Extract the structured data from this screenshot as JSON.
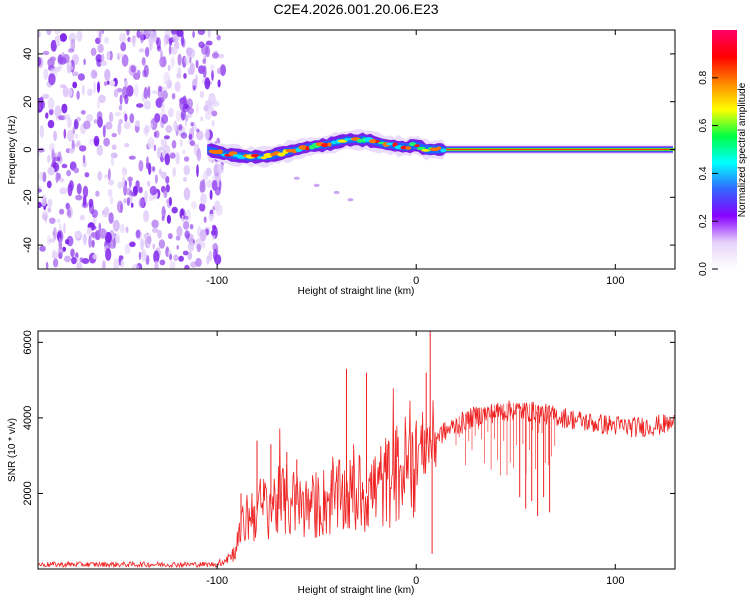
{
  "title": "C2E4.2026.001.20.06.E23",
  "chart_data": [
    {
      "type": "heatmap",
      "name": "spectrogram",
      "xlabel": "Height of straight line (km)",
      "ylabel": "Frequency (Hz)",
      "xlim": [
        -190,
        130
      ],
      "ylim": [
        -50,
        50
      ],
      "xticks": [
        -100,
        0,
        100
      ],
      "xtick_labels": [
        "-100",
        "0",
        "100"
      ],
      "yticks": [
        -40,
        -20,
        0,
        20,
        40
      ],
      "ytick_labels": [
        "-40",
        "-20",
        "0",
        "20",
        "40"
      ],
      "noise_region_x": [
        -190,
        -100
      ],
      "signal_track": {
        "x": [
          -105,
          -95,
          -85,
          -75,
          -65,
          -55,
          -45,
          -35,
          -25,
          -15,
          -5,
          0,
          5,
          10,
          15,
          20,
          40,
          60,
          80,
          100,
          120,
          130
        ],
        "y": [
          0,
          -2,
          -3,
          -3,
          -1,
          1,
          2,
          4,
          4,
          2,
          1,
          2,
          0,
          0,
          0,
          0,
          0,
          0,
          0,
          0,
          0,
          0
        ]
      },
      "faint_branch": {
        "x": [
          -60,
          -50,
          -40,
          -33
        ],
        "y": [
          -12,
          -15,
          -18,
          -21
        ]
      },
      "colorbar": {
        "label": "Normalized spectral amplitude",
        "range": [
          0,
          1
        ],
        "ticks": [
          0.0,
          0.2,
          0.4,
          0.6,
          0.8
        ],
        "tick_labels": [
          "0.0",
          "0.2",
          "0.4",
          "0.6",
          "0.8"
        ],
        "colors": [
          "#ffffff",
          "#e6d3fa",
          "#8800ff",
          "#3366ff",
          "#00ffff",
          "#00ff44",
          "#ffff00",
          "#ff8800",
          "#ff0000",
          "#ff0066"
        ]
      }
    },
    {
      "type": "line",
      "name": "snr",
      "xlabel": "Height of straight line (km)",
      "ylabel": "SNR (10 * v/v)",
      "xlim": [
        -190,
        130
      ],
      "ylim": [
        0,
        6300
      ],
      "xticks": [
        -100,
        0,
        100
      ],
      "xtick_labels": [
        "-100",
        "0",
        "100"
      ],
      "yticks": [
        2000,
        4000,
        6000
      ],
      "ytick_labels": [
        "2000",
        "4000",
        "6000"
      ],
      "color": "#ee2222",
      "envelope": {
        "x": [
          -190,
          -100,
          -92,
          -85,
          -75,
          -65,
          -55,
          -45,
          -35,
          -25,
          -15,
          -5,
          0,
          5,
          10,
          20,
          30,
          40,
          50,
          60,
          70,
          80,
          90,
          100,
          110,
          120,
          130
        ],
        "y": [
          120,
          120,
          400,
          1400,
          1700,
          1800,
          1600,
          1800,
          1900,
          2000,
          2300,
          2700,
          3100,
          3300,
          3500,
          3800,
          4050,
          4150,
          4200,
          4150,
          4050,
          3950,
          3850,
          3800,
          3750,
          3800,
          3850
        ]
      },
      "spikes": {
        "x": [
          -88,
          -80,
          -73,
          -65,
          -60,
          -35,
          -27,
          -25,
          5,
          7
        ],
        "y": [
          2000,
          3400,
          3300,
          3100,
          2900,
          5300,
          2300,
          5200,
          5200,
          6300
        ]
      },
      "dropouts": {
        "x": [
          8,
          52,
          55,
          58,
          61,
          64,
          67
        ],
        "y": [
          400,
          1900,
          1600,
          1800,
          1400,
          1900,
          1500
        ]
      }
    }
  ]
}
